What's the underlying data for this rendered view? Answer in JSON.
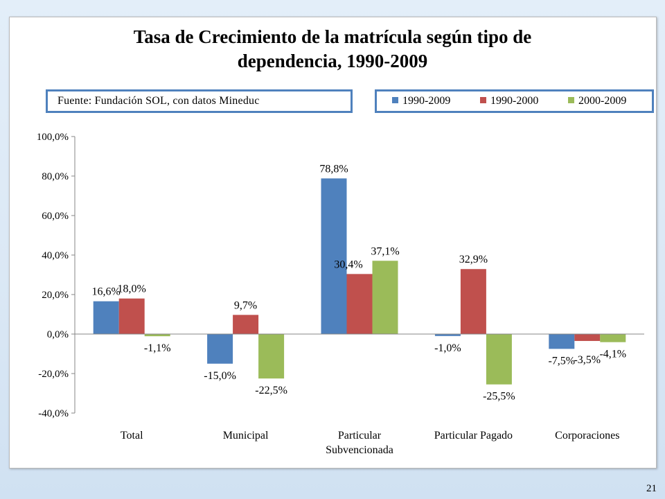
{
  "page": {
    "number": "21"
  },
  "source_note": "Fuente: Fundación SOL, con datos Mineduc",
  "colors": {
    "accent_border": "#4f81bd"
  },
  "chart_data": {
    "type": "bar",
    "title": "Tasa de Crecimiento de la matrícula según tipo de dependencia, 1990-2009",
    "title_lines": [
      "Tasa de Crecimiento de la matrícula según tipo de",
      "dependencia, 1990-2009"
    ],
    "xlabel": "",
    "ylabel": "",
    "categories": [
      "Total",
      "Municipal",
      "Particular Subvencionada",
      "Particular Pagado",
      "Corporaciones"
    ],
    "category_label_lines": [
      [
        "Total"
      ],
      [
        "Municipal"
      ],
      [
        "Particular",
        "Subvencionada"
      ],
      [
        "Particular Pagado"
      ],
      [
        "Corporaciones"
      ]
    ],
    "series": [
      {
        "name": "1990-2009",
        "color": "#4f81bd",
        "values": [
          16.6,
          -15.0,
          78.8,
          -1.0,
          -7.5
        ],
        "labels": [
          "16,6%",
          "-15,0%",
          "78,8%",
          "-1,0%",
          "-7,5%"
        ]
      },
      {
        "name": "1990-2000",
        "color": "#c0504d",
        "values": [
          18.0,
          9.7,
          30.4,
          32.9,
          -3.5
        ],
        "labels": [
          "18,0%",
          "9,7%",
          "30,4%",
          "32,9%",
          "-3,5%"
        ]
      },
      {
        "name": "2000-2009",
        "color": "#9bbb59",
        "values": [
          -1.1,
          -22.5,
          37.1,
          -25.5,
          -4.1
        ],
        "labels": [
          "-1,1%",
          "-22,5%",
          "37,1%",
          "-25,5%",
          "-4,1%"
        ]
      }
    ],
    "ylim": [
      -40,
      100
    ],
    "yticks": [
      -40,
      -20,
      0,
      20,
      40,
      60,
      80,
      100
    ],
    "ytick_labels": [
      "-40,0%",
      "-20,0%",
      "0,0%",
      "20,0%",
      "40,0%",
      "60,0%",
      "80,0%",
      "100,0%"
    ],
    "grid": false,
    "legend_position": "top-right"
  }
}
